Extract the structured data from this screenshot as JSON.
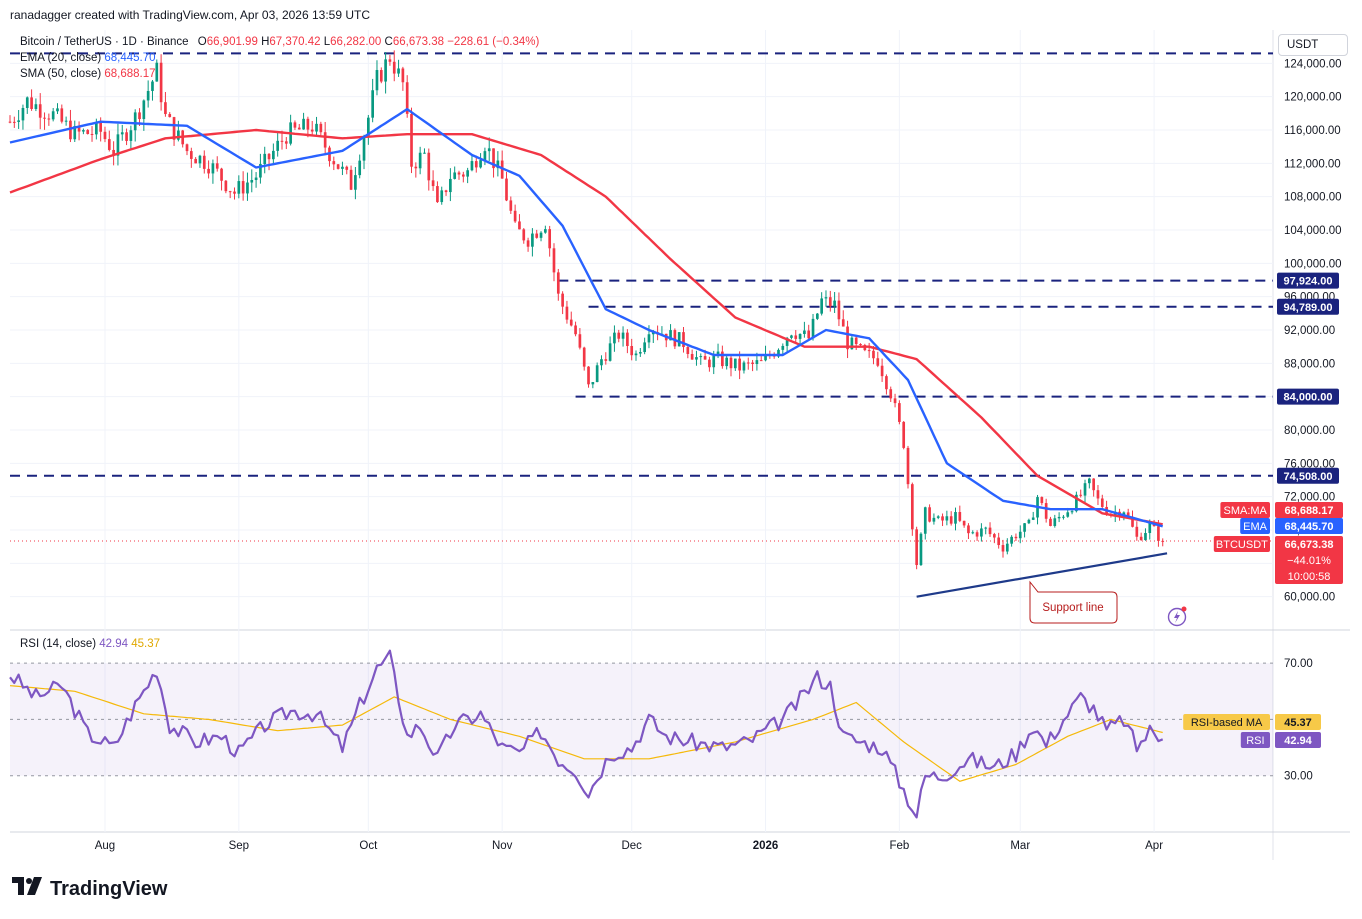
{
  "header": {
    "author_line": "ranadagger created with TradingView.com, Apr 03, 2026 13:59 UTC"
  },
  "legend": {
    "symbol": "Bitcoin / TetherUS · 1D · Binance",
    "o_label": "O",
    "o": "66,901.99",
    "h_label": "H",
    "h": "67,370.42",
    "l_label": "L",
    "l": "66,282.00",
    "c_label": "C",
    "c": "66,673.38",
    "change": "−228.61 (−0.34%)",
    "ema_label": "EMA (20, close)",
    "ema_value": "68,445.70",
    "sma_label": "SMA (50, close)",
    "sma_value": "68,688.17",
    "rsi_label": "RSI (14, close)",
    "rsi_value": "42.94",
    "rsi_ma_value": "45.37"
  },
  "currency_button": "USDT",
  "logo_text": "TradingView",
  "annotation": "Support line",
  "colors": {
    "up": "#089981",
    "down": "#f23645",
    "ema": "#2962ff",
    "sma": "#f23645",
    "rsi": "#7e57c2",
    "rsi_ma": "#f7c948",
    "level": "#1a237e",
    "support": "#1e3a8a"
  },
  "chart_data": [
    {
      "type": "candlestick",
      "title": "Bitcoin / TetherUS · 1D · Binance",
      "y_axis": {
        "range": [
          56000,
          128000
        ],
        "ticks": [
          "60,000.00",
          "64,000.00",
          "68,000.00",
          "72,000.00",
          "76,000.00",
          "80,000.00",
          "84,000.00",
          "88,000.00",
          "92,000.00",
          "96,000.00",
          "100,000.00",
          "104,000.00",
          "108,000.00",
          "112,000.00",
          "116,000.00",
          "120,000.00",
          "124,000.00"
        ],
        "tick_values": [
          60000,
          64000,
          68000,
          72000,
          76000,
          80000,
          84000,
          88000,
          92000,
          96000,
          100000,
          104000,
          108000,
          112000,
          116000,
          120000,
          124000
        ]
      },
      "x_axis": {
        "labels": [
          "Aug",
          "Sep",
          "Oct",
          "Nov",
          "Dec",
          "2026",
          "Feb",
          "Mar",
          "Apr"
        ],
        "label_dates": [
          "2025-08-01",
          "2025-09-01",
          "2025-10-01",
          "2025-11-01",
          "2025-12-01",
          "2026-01-01",
          "2026-02-01",
          "2026-03-01",
          "2026-04-01"
        ],
        "start_date": "2025-07-10",
        "end_date": "2026-04-03"
      },
      "close_path": [
        [
          "2025-07-10",
          117000
        ],
        [
          "2025-07-14",
          119500
        ],
        [
          "2025-07-20",
          117800
        ],
        [
          "2025-07-25",
          115500
        ],
        [
          "2025-07-31",
          115800
        ],
        [
          "2025-08-03",
          113500
        ],
        [
          "2025-08-08",
          117500
        ],
        [
          "2025-08-13",
          123000
        ],
        [
          "2025-08-15",
          117500
        ],
        [
          "2025-08-20",
          113500
        ],
        [
          "2025-08-25",
          112000
        ],
        [
          "2025-08-31",
          108500
        ],
        [
          "2025-09-05",
          110500
        ],
        [
          "2025-09-12",
          115500
        ],
        [
          "2025-09-18",
          116500
        ],
        [
          "2025-09-23",
          112500
        ],
        [
          "2025-09-27",
          109500
        ],
        [
          "2025-10-01",
          117500
        ],
        [
          "2025-10-03",
          122000
        ],
        [
          "2025-10-06",
          124800
        ],
        [
          "2025-10-09",
          121500
        ],
        [
          "2025-10-11",
          112000
        ],
        [
          "2025-10-14",
          113000
        ],
        [
          "2025-10-17",
          106500
        ],
        [
          "2025-10-20",
          110500
        ],
        [
          "2025-10-24",
          111000
        ],
        [
          "2025-10-28",
          114500
        ],
        [
          "2025-11-01",
          110000
        ],
        [
          "2025-11-04",
          104000
        ],
        [
          "2025-11-07",
          103000
        ],
        [
          "2025-11-11",
          105000
        ],
        [
          "2025-11-14",
          96000
        ],
        [
          "2025-11-18",
          91500
        ],
        [
          "2025-11-21",
          85000
        ],
        [
          "2025-11-24",
          88500
        ],
        [
          "2025-11-28",
          91500
        ],
        [
          "2025-12-02",
          89000
        ],
        [
          "2025-12-05",
          92500
        ],
        [
          "2025-12-09",
          91500
        ],
        [
          "2025-12-13",
          90500
        ],
        [
          "2025-12-17",
          88000
        ],
        [
          "2025-12-21",
          88500
        ],
        [
          "2025-12-26",
          87500
        ],
        [
          "2025-12-31",
          88000
        ],
        [
          "2026-01-03",
          89500
        ],
        [
          "2026-01-07",
          92000
        ],
        [
          "2026-01-11",
          91000
        ],
        [
          "2026-01-14",
          95500
        ],
        [
          "2026-01-17",
          95000
        ],
        [
          "2026-01-20",
          90500
        ],
        [
          "2026-01-24",
          89000
        ],
        [
          "2026-01-27",
          88500
        ],
        [
          "2026-01-30",
          84500
        ],
        [
          "2026-02-02",
          78500
        ],
        [
          "2026-02-05",
          64000
        ],
        [
          "2026-02-07",
          70000
        ],
        [
          "2026-02-10",
          69000
        ],
        [
          "2026-02-14",
          69500
        ],
        [
          "2026-02-17",
          67500
        ],
        [
          "2026-02-21",
          68000
        ],
        [
          "2026-02-25",
          66000
        ],
        [
          "2026-02-28",
          67500
        ],
        [
          "2026-03-03",
          68500
        ],
        [
          "2026-03-05",
          72000
        ],
        [
          "2026-03-08",
          68500
        ],
        [
          "2026-03-11",
          70000
        ],
        [
          "2026-03-14",
          71500
        ],
        [
          "2026-03-17",
          73500
        ],
        [
          "2026-03-19",
          71500
        ],
        [
          "2026-03-22",
          70000
        ],
        [
          "2026-03-25",
          70500
        ],
        [
          "2026-03-28",
          67000
        ],
        [
          "2026-03-31",
          68500
        ],
        [
          "2026-04-03",
          66673.38
        ]
      ],
      "ema20_path": [
        [
          "2025-07-10",
          114500
        ],
        [
          "2025-07-31",
          117000
        ],
        [
          "2025-08-20",
          116500
        ],
        [
          "2025-09-05",
          111500
        ],
        [
          "2025-09-25",
          113500
        ],
        [
          "2025-10-10",
          118500
        ],
        [
          "2025-10-25",
          113000
        ],
        [
          "2025-11-05",
          110500
        ],
        [
          "2025-11-15",
          104500
        ],
        [
          "2025-11-25",
          94500
        ],
        [
          "2025-12-05",
          92000
        ],
        [
          "2025-12-20",
          89000
        ],
        [
          "2026-01-05",
          89000
        ],
        [
          "2026-01-15",
          92000
        ],
        [
          "2026-01-25",
          91000
        ],
        [
          "2026-02-03",
          86000
        ],
        [
          "2026-02-12",
          76000
        ],
        [
          "2026-02-25",
          71500
        ],
        [
          "2026-03-08",
          70500
        ],
        [
          "2026-03-20",
          70500
        ],
        [
          "2026-04-03",
          68445.7
        ]
      ],
      "sma50_path": [
        [
          "2025-07-10",
          108500
        ],
        [
          "2025-07-31",
          112500
        ],
        [
          "2025-08-15",
          115000
        ],
        [
          "2025-09-05",
          116000
        ],
        [
          "2025-09-25",
          115000
        ],
        [
          "2025-10-10",
          115500
        ],
        [
          "2025-10-25",
          115500
        ],
        [
          "2025-11-10",
          113000
        ],
        [
          "2025-11-25",
          108000
        ],
        [
          "2025-12-10",
          100500
        ],
        [
          "2025-12-25",
          93500
        ],
        [
          "2026-01-10",
          90000
        ],
        [
          "2026-01-25",
          90000
        ],
        [
          "2026-02-05",
          88500
        ],
        [
          "2026-02-20",
          81500
        ],
        [
          "2026-03-05",
          74500
        ],
        [
          "2026-03-20",
          70000
        ],
        [
          "2026-04-03",
          68688.17
        ]
      ],
      "horizontal_levels": [
        {
          "label": "97,924.00",
          "value": 97924,
          "from": "2025-11-14",
          "to": "2026-04-03"
        },
        {
          "label": "94,789.00",
          "value": 94789,
          "from": "2025-11-21",
          "to": "2026-04-03"
        },
        {
          "label": "84,000.00",
          "value": 84000,
          "from": "2025-11-18",
          "to": "2026-04-03"
        },
        {
          "label": "74,508.00",
          "value": 74508,
          "from": "2025-07-10",
          "to": "2026-04-03"
        },
        {
          "value": 125200,
          "from": "2025-07-10",
          "to": "2026-04-03"
        }
      ],
      "support_line": [
        [
          "2026-02-05",
          60000
        ],
        [
          "2026-04-04",
          65200
        ]
      ],
      "price_badges": [
        {
          "label": "SMA:MA",
          "value": "68,688.17",
          "price": 68688.17
        },
        {
          "label": "EMA",
          "value": "68,445.70",
          "price": 68445.7
        },
        {
          "label": "BTCUSDT",
          "value": "66,673.38",
          "price": 66673.38,
          "extra": [
            "−44.01%",
            "10:00:58"
          ]
        }
      ]
    },
    {
      "type": "line",
      "title": "RSI (14, close)",
      "y_axis": {
        "range": [
          10,
          80
        ],
        "ticks": [
          "30.00",
          "50.00",
          "70.00"
        ],
        "tick_values": [
          30,
          50,
          70
        ]
      },
      "band": [
        30,
        70
      ],
      "series": [
        {
          "name": "RSI",
          "points": [
            [
              "2025-07-10",
              66
            ],
            [
              "2025-07-16",
              58
            ],
            [
              "2025-07-22",
              62
            ],
            [
              "2025-07-28",
              45
            ],
            [
              "2025-08-03",
              40
            ],
            [
              "2025-08-08",
              55
            ],
            [
              "2025-08-13",
              68
            ],
            [
              "2025-08-16",
              48
            ],
            [
              "2025-08-22",
              42
            ],
            [
              "2025-08-28",
              44
            ],
            [
              "2025-09-01",
              38
            ],
            [
              "2025-09-07",
              48
            ],
            [
              "2025-09-13",
              53
            ],
            [
              "2025-09-19",
              52
            ],
            [
              "2025-09-25",
              40
            ],
            [
              "2025-09-29",
              55
            ],
            [
              "2025-10-03",
              68
            ],
            [
              "2025-10-06",
              72
            ],
            [
              "2025-10-10",
              44
            ],
            [
              "2025-10-13",
              48
            ],
            [
              "2025-10-17",
              36
            ],
            [
              "2025-10-21",
              48
            ],
            [
              "2025-10-27",
              52
            ],
            [
              "2025-11-01",
              40
            ],
            [
              "2025-11-05",
              38
            ],
            [
              "2025-11-10",
              46
            ],
            [
              "2025-11-14",
              36
            ],
            [
              "2025-11-18",
              32
            ],
            [
              "2025-11-21",
              24
            ],
            [
              "2025-11-26",
              38
            ],
            [
              "2025-12-01",
              40
            ],
            [
              "2025-12-05",
              50
            ],
            [
              "2025-12-09",
              44
            ],
            [
              "2025-12-15",
              42
            ],
            [
              "2025-12-22",
              40
            ],
            [
              "2025-12-28",
              42
            ],
            [
              "2026-01-05",
              50
            ],
            [
              "2026-01-09",
              57
            ],
            [
              "2026-01-13",
              65
            ],
            [
              "2026-01-16",
              62
            ],
            [
              "2026-01-19",
              44
            ],
            [
              "2026-01-23",
              42
            ],
            [
              "2026-01-28",
              40
            ],
            [
              "2026-02-01",
              28
            ],
            [
              "2026-02-05",
              16
            ],
            [
              "2026-02-07",
              30
            ],
            [
              "2026-02-11",
              30
            ],
            [
              "2026-02-17",
              36
            ],
            [
              "2026-02-23",
              33
            ],
            [
              "2026-02-28",
              38
            ],
            [
              "2026-03-04",
              48
            ],
            [
              "2026-03-07",
              41
            ],
            [
              "2026-03-11",
              50
            ],
            [
              "2026-03-15",
              58
            ],
            [
              "2026-03-18",
              54
            ],
            [
              "2026-03-21",
              46
            ],
            [
              "2026-03-25",
              50
            ],
            [
              "2026-03-28",
              40
            ],
            [
              "2026-03-31",
              46
            ],
            [
              "2026-04-03",
              42.94
            ]
          ]
        },
        {
          "name": "RSI-based MA",
          "points": [
            [
              "2025-07-10",
              62
            ],
            [
              "2025-07-25",
              60
            ],
            [
              "2025-08-10",
              52
            ],
            [
              "2025-08-25",
              50
            ],
            [
              "2025-09-10",
              46
            ],
            [
              "2025-09-25",
              48
            ],
            [
              "2025-10-07",
              58
            ],
            [
              "2025-10-20",
              50
            ],
            [
              "2025-11-05",
              44
            ],
            [
              "2025-11-20",
              36
            ],
            [
              "2025-12-05",
              36
            ],
            [
              "2025-12-25",
              42
            ],
            [
              "2026-01-12",
              50
            ],
            [
              "2026-01-22",
              56
            ],
            [
              "2026-02-02",
              42
            ],
            [
              "2026-02-15",
              28
            ],
            [
              "2026-02-28",
              34
            ],
            [
              "2026-03-12",
              44
            ],
            [
              "2026-03-22",
              50
            ],
            [
              "2026-04-03",
              45.37
            ]
          ]
        }
      ],
      "badges": [
        {
          "label": "RSI-based MA",
          "value": "45.37",
          "level": 45.37
        },
        {
          "label": "RSI",
          "value": "42.94",
          "level": 42.94
        }
      ]
    }
  ]
}
